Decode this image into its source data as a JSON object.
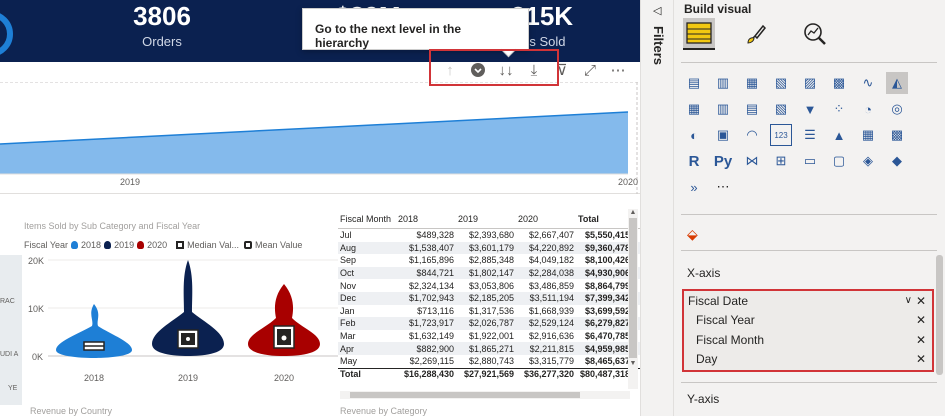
{
  "kpis": [
    {
      "value": "3806",
      "label": "Orders"
    },
    {
      "value": "$89M",
      "label": ""
    },
    {
      "value": "215K",
      "label": "ms Sold"
    }
  ],
  "tooltip": {
    "text": "Go to the next level in the hierarchy"
  },
  "toolbar": {
    "drill_up_icon": "↑",
    "drill_mode_icon": "↓",
    "next_level_icon": "↓↓",
    "expand_icon": "⤓",
    "filter_icon": "⊽",
    "focus_icon": "⤢",
    "more_icon": "⋯"
  },
  "line_chart": {
    "x_ticks": [
      "2019",
      "2020"
    ],
    "area_color": "#5ba3e6"
  },
  "violin_chart": {
    "title": "Items Sold by Sub Category and Fiscal Year",
    "legend": {
      "field_label": "Fiscal Year",
      "items": [
        {
          "label": "2018",
          "color": "#1e7fd6"
        },
        {
          "label": "2019",
          "color": "#0b2150"
        },
        {
          "label": "2020",
          "color": "#a80000"
        }
      ],
      "median_label": "Median Val...",
      "mean_label": "Mean Value"
    },
    "y_ticks": [
      "20K",
      "10K",
      "0K"
    ],
    "x_ticks": [
      "2018",
      "2019",
      "2020"
    ]
  },
  "map_labels": [
    "RAC",
    "UDI A",
    "YE"
  ],
  "matrix": {
    "headers": [
      "Fiscal Month",
      "2018",
      "2019",
      "2020",
      "Total"
    ],
    "rows": [
      [
        "Jul",
        "$489,328",
        "$2,393,680",
        "$2,667,407",
        "$5,550,415"
      ],
      [
        "Aug",
        "$1,538,407",
        "$3,601,179",
        "$4,220,892",
        "$9,360,478"
      ],
      [
        "Sep",
        "$1,165,896",
        "$2,885,348",
        "$4,049,182",
        "$8,100,426"
      ],
      [
        "Oct",
        "$844,721",
        "$1,802,147",
        "$2,284,038",
        "$4,930,906"
      ],
      [
        "Nov",
        "$2,324,134",
        "$3,053,806",
        "$3,486,859",
        "$8,864,799"
      ],
      [
        "Dec",
        "$1,702,943",
        "$2,185,205",
        "$3,511,194",
        "$7,399,342"
      ],
      [
        "Jan",
        "$713,116",
        "$1,317,536",
        "$1,668,939",
        "$3,699,592"
      ],
      [
        "Feb",
        "$1,723,917",
        "$2,026,787",
        "$2,529,124",
        "$6,279,827"
      ],
      [
        "Mar",
        "$1,632,149",
        "$1,922,001",
        "$2,916,636",
        "$6,470,785"
      ],
      [
        "Apr",
        "$882,900",
        "$1,865,271",
        "$2,211,815",
        "$4,959,985"
      ],
      [
        "May",
        "$2,269,115",
        "$2,880,743",
        "$3,315,779",
        "$8,465,637"
      ]
    ],
    "total": [
      "Total",
      "$16,288,430",
      "$27,921,569",
      "$36,277,320",
      "$80,487,318"
    ]
  },
  "bottom_titles": [
    "Revenue by Country",
    "Revenue by Category"
  ],
  "filters_pane": {
    "label": "Filters"
  },
  "build_pane": {
    "title": "Build visual",
    "x_axis_label": "X-axis",
    "y_axis_label": "Y-axis",
    "x_axis_fields": [
      {
        "label": "Fiscal Date",
        "level": 0
      },
      {
        "label": "Fiscal Year",
        "level": 1
      },
      {
        "label": "Fiscal Month",
        "level": 1
      },
      {
        "label": "Day",
        "level": 1
      }
    ],
    "viz_icons": [
      "▤",
      "▥",
      "▦",
      "▧",
      "▨",
      "▩",
      "∿",
      "◭",
      "▦",
      "▥",
      "▤",
      "▧",
      "▼",
      "⁘",
      "◔",
      "◎",
      "◐",
      "▣",
      "◠",
      "123",
      "☰",
      "▲",
      "▦",
      "▩",
      "R",
      "Py",
      "⋈",
      "⊞",
      "▭",
      "▢",
      "◈",
      "◆",
      "»",
      "⋯"
    ]
  }
}
